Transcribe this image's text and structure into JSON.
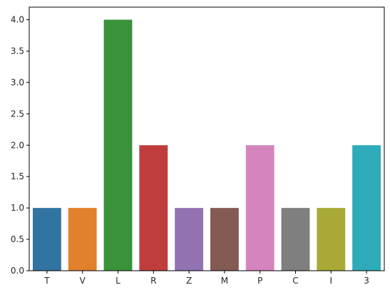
{
  "chart_data": {
    "type": "bar",
    "title": "",
    "xlabel": "",
    "ylabel": "",
    "categories": [
      "T",
      "V",
      "L",
      "R",
      "Z",
      "M",
      "P",
      "C",
      "I",
      "3"
    ],
    "values": [
      1,
      1,
      4,
      2,
      1,
      1,
      2,
      1,
      1,
      2
    ],
    "colors": [
      "#3274a1",
      "#e1812c",
      "#3a923a",
      "#c03d3e",
      "#9372b2",
      "#845b53",
      "#d684bd",
      "#7f7f7f",
      "#a9aa35",
      "#2eabb8"
    ],
    "ylim": [
      0,
      4.2
    ],
    "yticks": [
      "0.0",
      "0.5",
      "1.0",
      "1.5",
      "2.0",
      "2.5",
      "3.0",
      "3.5",
      "4.0"
    ],
    "grid": false,
    "legend": "none"
  }
}
